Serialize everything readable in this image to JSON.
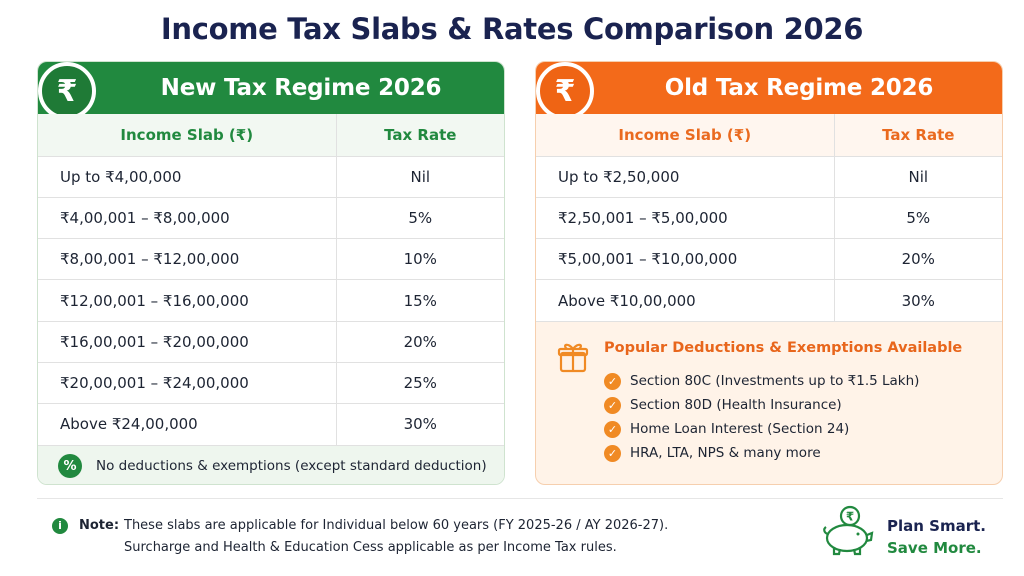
{
  "title": "Income Tax Slabs & Rates Comparison 2026",
  "currency_symbol": "₹",
  "new_regime": {
    "title": "New Tax Regime 2026",
    "header_slab": "Income Slab (₹)",
    "header_rate": "Tax Rate",
    "rows": [
      {
        "slab": "Up to ₹4,00,000",
        "rate": "Nil"
      },
      {
        "slab": "₹4,00,001  –  ₹8,00,000",
        "rate": "5%"
      },
      {
        "slab": "₹8,00,001  –  ₹12,00,000",
        "rate": "10%"
      },
      {
        "slab": "₹12,00,001  –  ₹16,00,000",
        "rate": "15%"
      },
      {
        "slab": "₹16,00,001  –  ₹20,00,000",
        "rate": "20%"
      },
      {
        "slab": "₹20,00,001  –  ₹24,00,000",
        "rate": "25%"
      },
      {
        "slab": "Above ₹24,00,000",
        "rate": "30%"
      }
    ],
    "note_icon": "%",
    "note": "No deductions & exemptions (except standard deduction)"
  },
  "old_regime": {
    "title": "Old Tax Regime 2026",
    "header_slab": "Income Slab (₹)",
    "header_rate": "Tax Rate",
    "rows": [
      {
        "slab": "Up to ₹2,50,000",
        "rate": "Nil"
      },
      {
        "slab": "₹2,50,001  –  ₹5,00,000",
        "rate": "5%"
      },
      {
        "slab": "₹5,00,001  –  ₹10,00,000",
        "rate": "20%"
      },
      {
        "slab": "Above ₹10,00,000",
        "rate": "30%"
      }
    ],
    "deductions_title": "Popular Deductions & Exemptions Available",
    "deductions": [
      "Section 80C (Investments up to ₹1.5 Lakh)",
      "Section 80D (Health Insurance)",
      "Home Loan Interest (Section 24)",
      "HRA, LTA, NPS & many more"
    ]
  },
  "footer": {
    "note_label": "Note:",
    "note_line1": "These slabs are applicable for Individual below 60 years (FY 2025-26 / AY 2026-27).",
    "note_line2": "Surcharge and Health & Education Cess applicable as per Income Tax rules.",
    "slogan_line1": "Plan Smart.",
    "slogan_line2": "Save More."
  },
  "colors": {
    "title": "#1a2350",
    "green": "#21893f",
    "orange": "#f36a1a",
    "orange_text": "#e8661c",
    "old_panel_bg": "#fff3e8"
  },
  "icons": {
    "rupee_badge": "rupee-icon",
    "percent": "percent-icon",
    "gift": "gift-icon",
    "check": "check-circle-icon",
    "info": "info-icon",
    "piggy_bank": "piggy-bank-icon"
  }
}
